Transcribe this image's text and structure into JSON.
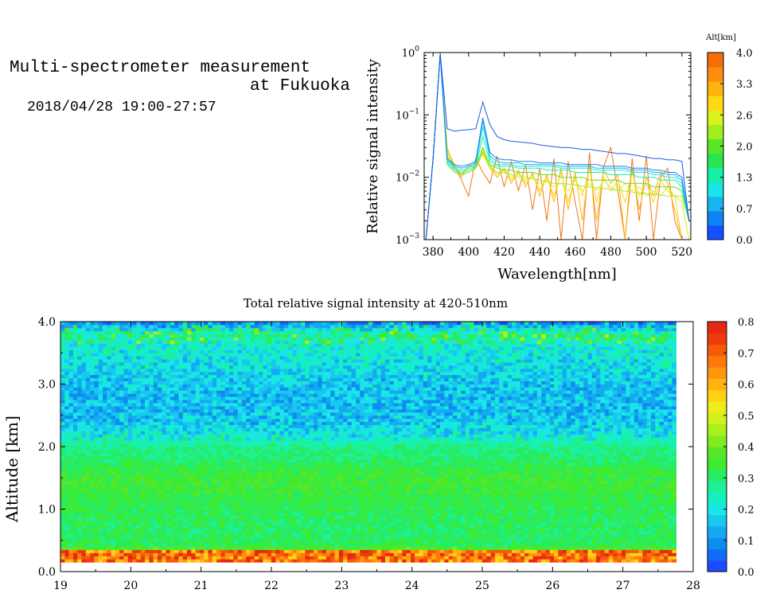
{
  "header": {
    "title_line1": "Multi-spectrometer measurement",
    "title_line2": "at Fukuoka",
    "datetime": "2018/04/28 19:00-27:57"
  },
  "chart_data": [
    {
      "id": "spectrum",
      "type": "line",
      "title": "",
      "xlabel": "Wavelength[nm]",
      "ylabel": "Relative signal intensity",
      "xlim": [
        375,
        525
      ],
      "ylim": [
        0.001,
        1
      ],
      "yscale": "log",
      "xticks": [
        380,
        400,
        420,
        440,
        460,
        480,
        500,
        520
      ],
      "yticks": [
        {
          "value": 1,
          "base": "10",
          "exp": "0"
        },
        {
          "value": 0.1,
          "base": "10",
          "exp": "−1"
        },
        {
          "value": 0.01,
          "base": "10",
          "exp": "−2"
        },
        {
          "value": 0.001,
          "base": "10",
          "exp": "−3"
        }
      ],
      "colorbar": {
        "label": "Alt[km]",
        "ticks": [
          "0.0",
          "0.7",
          "1.3",
          "2.0",
          "2.6",
          "3.3",
          "4.0"
        ],
        "colors": [
          "#1450ff",
          "#0f82f5",
          "#19b4f0",
          "#19e6e6",
          "#14f0aa",
          "#28e650",
          "#5ae628",
          "#a0f01e",
          "#dcf01e",
          "#ffd714",
          "#ffb40f",
          "#ff8c0f",
          "#f56e0a"
        ]
      },
      "x": [
        376,
        380,
        384,
        388,
        392,
        396,
        400,
        404,
        408,
        412,
        416,
        420,
        424,
        428,
        432,
        436,
        440,
        444,
        448,
        452,
        456,
        460,
        464,
        468,
        472,
        476,
        480,
        484,
        488,
        492,
        496,
        500,
        504,
        508,
        512,
        516,
        520,
        524
      ],
      "series": [
        {
          "alt_km": 0.1,
          "color": "#1e5ae6",
          "values": [
            0.001,
            0.02,
            0.98,
            0.06,
            0.055,
            0.057,
            0.058,
            0.06,
            0.16,
            0.07,
            0.045,
            0.04,
            0.038,
            0.037,
            0.036,
            0.035,
            0.033,
            0.032,
            0.031,
            0.03,
            0.03,
            0.029,
            0.028,
            0.028,
            0.027,
            0.026,
            0.025,
            0.024,
            0.024,
            0.023,
            0.022,
            0.021,
            0.02,
            0.02,
            0.019,
            0.019,
            0.018,
            0.002
          ]
        },
        {
          "alt_km": 0.5,
          "color": "#0f82f5",
          "values": [
            0.001,
            0.02,
            0.95,
            0.02,
            0.016,
            0.015,
            0.016,
            0.018,
            0.09,
            0.025,
            0.02,
            0.019,
            0.019,
            0.018,
            0.018,
            0.018,
            0.017,
            0.017,
            0.017,
            0.017,
            0.016,
            0.016,
            0.016,
            0.016,
            0.016,
            0.015,
            0.015,
            0.015,
            0.015,
            0.014,
            0.014,
            0.014,
            0.013,
            0.013,
            0.012,
            0.012,
            0.01,
            0.002
          ]
        },
        {
          "alt_km": 0.9,
          "color": "#19b4f0",
          "values": [
            0.001,
            0.02,
            0.95,
            0.019,
            0.015,
            0.014,
            0.015,
            0.017,
            0.08,
            0.022,
            0.018,
            0.017,
            0.017,
            0.017,
            0.016,
            0.016,
            0.016,
            0.016,
            0.016,
            0.015,
            0.015,
            0.015,
            0.015,
            0.015,
            0.014,
            0.014,
            0.014,
            0.014,
            0.014,
            0.013,
            0.013,
            0.013,
            0.012,
            0.012,
            0.011,
            0.011,
            0.009,
            0.002
          ]
        },
        {
          "alt_km": 1.3,
          "color": "#19e6e6",
          "values": [
            0.001,
            0.02,
            0.95,
            0.018,
            0.014,
            0.013,
            0.014,
            0.016,
            0.065,
            0.02,
            0.016,
            0.016,
            0.016,
            0.015,
            0.015,
            0.015,
            0.015,
            0.015,
            0.015,
            0.014,
            0.014,
            0.014,
            0.014,
            0.014,
            0.013,
            0.013,
            0.013,
            0.013,
            0.013,
            0.012,
            0.012,
            0.012,
            0.011,
            0.011,
            0.01,
            0.01,
            0.008,
            0.002
          ]
        },
        {
          "alt_km": 1.7,
          "color": "#14f0aa",
          "values": [
            0.001,
            0.02,
            0.95,
            0.017,
            0.013,
            0.012,
            0.013,
            0.015,
            0.045,
            0.018,
            0.015,
            0.015,
            0.015,
            0.014,
            0.014,
            0.014,
            0.014,
            0.013,
            0.013,
            0.013,
            0.013,
            0.012,
            0.012,
            0.012,
            0.012,
            0.012,
            0.011,
            0.011,
            0.011,
            0.011,
            0.01,
            0.01,
            0.01,
            0.009,
            0.009,
            0.009,
            0.007,
            0.002
          ]
        },
        {
          "alt_km": 2.1,
          "color": "#5ae628",
          "values": [
            0.001,
            0.02,
            0.95,
            0.016,
            0.012,
            0.011,
            0.012,
            0.014,
            0.03,
            0.016,
            0.014,
            0.013,
            0.013,
            0.012,
            0.012,
            0.012,
            0.011,
            0.011,
            0.011,
            0.01,
            0.01,
            0.01,
            0.01,
            0.009,
            0.009,
            0.009,
            0.009,
            0.009,
            0.008,
            0.008,
            0.008,
            0.008,
            0.007,
            0.007,
            0.007,
            0.007,
            0.006,
            0.002
          ]
        },
        {
          "alt_km": 2.6,
          "color": "#a0f01e",
          "values": [
            0.001,
            0.02,
            0.95,
            0.022,
            0.013,
            0.012,
            0.013,
            0.015,
            0.026,
            0.014,
            0.012,
            0.012,
            0.011,
            0.01,
            0.01,
            0.0095,
            0.009,
            0.0085,
            0.008,
            0.008,
            0.0078,
            0.0075,
            0.0072,
            0.007,
            0.0068,
            0.0066,
            0.0064,
            0.0062,
            0.006,
            0.0058,
            0.0056,
            0.0055,
            0.0053,
            0.0052,
            0.005,
            0.005,
            0.005,
            0.002
          ]
        },
        {
          "alt_km": 3.0,
          "color": "#dcf01e",
          "values": [
            0.001,
            0.02,
            0.95,
            0.025,
            0.014,
            0.012,
            0.014,
            0.016,
            0.028,
            0.015,
            0.012,
            0.012,
            0.01,
            0.011,
            0.009,
            0.01,
            0.008,
            0.009,
            0.007,
            0.008,
            0.006,
            0.009,
            0.006,
            0.008,
            0.006,
            0.009,
            0.007,
            0.006,
            0.008,
            0.006,
            0.007,
            0.005,
            0.006,
            0.005,
            0.007,
            0.005,
            0.004,
            0.001
          ]
        },
        {
          "alt_km": 3.3,
          "color": "#ffd714",
          "values": [
            0.001,
            0.02,
            0.95,
            0.03,
            0.015,
            0.011,
            0.015,
            0.017,
            0.025,
            0.016,
            0.011,
            0.013,
            0.009,
            0.012,
            0.008,
            0.011,
            0.006,
            0.01,
            0.005,
            0.012,
            0.004,
            0.01,
            0.005,
            0.014,
            0.004,
            0.01,
            0.006,
            0.009,
            0.004,
            0.012,
            0.005,
            0.008,
            0.004,
            0.009,
            0.006,
            0.005,
            0.001,
            0.001
          ]
        },
        {
          "alt_km": 3.6,
          "color": "#ffb40f",
          "values": [
            0.001,
            0.02,
            0.95,
            0.028,
            0.016,
            0.01,
            0.016,
            0.014,
            0.024,
            0.014,
            0.01,
            0.014,
            0.008,
            0.013,
            0.007,
            0.012,
            0.005,
            0.011,
            0.004,
            0.014,
            0.003,
            0.012,
            0.002,
            0.016,
            0.002,
            0.013,
            0.008,
            0.011,
            0.001,
            0.014,
            0.003,
            0.01,
            0.005,
            0.012,
            0.008,
            0.003,
            0.001,
            0.001
          ]
        },
        {
          "alt_km": 3.9,
          "color": "#f07814",
          "values": [
            0.001,
            0.02,
            0.95,
            0.025,
            0.015,
            0.009,
            0.005,
            0.02,
            0.012,
            0.008,
            0.022,
            0.007,
            0.018,
            0.006,
            0.016,
            0.003,
            0.014,
            0.002,
            0.02,
            0.001,
            0.018,
            0.004,
            0.001,
            0.025,
            0.001,
            0.015,
            0.03,
            0.006,
            0.001,
            0.02,
            0.002,
            0.022,
            0.001,
            0.01,
            0.014,
            0.002,
            0.001,
            0.001
          ]
        }
      ]
    },
    {
      "id": "time-height",
      "type": "heatmap",
      "title": "Total relative signal intensity at 420-510nm",
      "xlabel": "",
      "ylabel": "Altitude [km]",
      "xlim": [
        19,
        28
      ],
      "ylim": [
        0,
        4
      ],
      "xticks": [
        "19",
        "20",
        "21",
        "22",
        "23",
        "24",
        "25",
        "26",
        "27",
        "28"
      ],
      "yticks": [
        "0.0",
        "1.0",
        "2.0",
        "3.0",
        "4.0"
      ],
      "data_end_hour": 27.95,
      "colorbar": {
        "label": "",
        "ticks": [
          "0.0",
          "0.1",
          "0.2",
          "0.3",
          "0.4",
          "0.5",
          "0.6",
          "0.7",
          "0.8"
        ],
        "colors": [
          "#1e4bff",
          "#0f6ef5",
          "#0f8cf0",
          "#14aaf0",
          "#19c8f0",
          "#19e6e6",
          "#14f0be",
          "#1ef096",
          "#28eb64",
          "#3ceb32",
          "#5ae628",
          "#82eb1e",
          "#aaf01e",
          "#d2f01e",
          "#f0eb19",
          "#ffd214",
          "#ffb40f",
          "#ff960f",
          "#ff780a",
          "#f55a0a",
          "#eb3c0a",
          "#e62814"
        ]
      },
      "altitude_profile_km": [
        0.2,
        0.4,
        0.6,
        0.8,
        1.0,
        1.2,
        1.4,
        1.6,
        1.8,
        2.0,
        2.2,
        2.4,
        2.6,
        2.8,
        3.0,
        3.2,
        3.4,
        3.6,
        3.8,
        4.0
      ],
      "mean_profile_values": [
        0.7,
        0.32,
        0.31,
        0.31,
        0.32,
        0.33,
        0.35,
        0.34,
        0.3,
        0.28,
        0.2,
        0.16,
        0.15,
        0.15,
        0.16,
        0.18,
        0.2,
        0.22,
        0.28,
        0.05
      ]
    }
  ]
}
